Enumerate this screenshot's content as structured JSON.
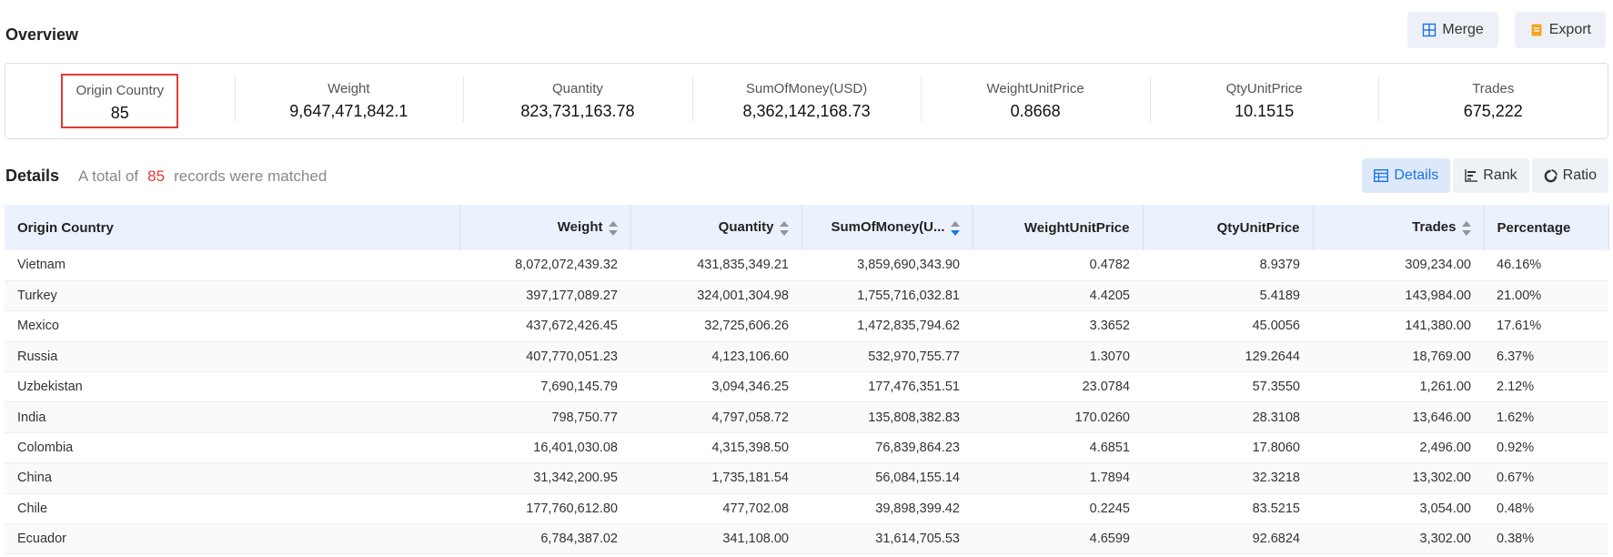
{
  "overview": {
    "title": "Overview",
    "actions": {
      "merge_label": "Merge",
      "export_label": "Export"
    },
    "stats": [
      {
        "label": "Origin Country",
        "value": "85"
      },
      {
        "label": "Weight",
        "value": "9,647,471,842.1"
      },
      {
        "label": "Quantity",
        "value": "823,731,163.78"
      },
      {
        "label": "SumOfMoney(USD)",
        "value": "8,362,142,168.73"
      },
      {
        "label": "WeightUnitPrice",
        "value": "0.8668"
      },
      {
        "label": "QtyUnitPrice",
        "value": "10.1515"
      },
      {
        "label": "Trades",
        "value": "675,222"
      }
    ]
  },
  "details": {
    "title": "Details",
    "summary_prefix": "A total of",
    "summary_count": "85",
    "summary_suffix": "records were matched",
    "views": {
      "details_label": "Details",
      "rank_label": "Rank",
      "ratio_label": "Ratio"
    },
    "columns": [
      "Origin Country",
      "Weight",
      "Quantity",
      "SumOfMoney(U...",
      "WeightUnitPrice",
      "QtyUnitPrice",
      "Trades",
      "Percentage"
    ],
    "rows": [
      [
        "Vietnam",
        "8,072,072,439.32",
        "431,835,349.21",
        "3,859,690,343.90",
        "0.4782",
        "8.9379",
        "309,234.00",
        "46.16%"
      ],
      [
        "Turkey",
        "397,177,089.27",
        "324,001,304.98",
        "1,755,716,032.81",
        "4.4205",
        "5.4189",
        "143,984.00",
        "21.00%"
      ],
      [
        "Mexico",
        "437,672,426.45",
        "32,725,606.26",
        "1,472,835,794.62",
        "3.3652",
        "45.0056",
        "141,380.00",
        "17.61%"
      ],
      [
        "Russia",
        "407,770,051.23",
        "4,123,106.60",
        "532,970,755.77",
        "1.3070",
        "129.2644",
        "18,769.00",
        "6.37%"
      ],
      [
        "Uzbekistan",
        "7,690,145.79",
        "3,094,346.25",
        "177,476,351.51",
        "23.0784",
        "57.3550",
        "1,261.00",
        "2.12%"
      ],
      [
        "India",
        "798,750.77",
        "4,797,058.72",
        "135,808,382.83",
        "170.0260",
        "28.3108",
        "13,646.00",
        "1.62%"
      ],
      [
        "Colombia",
        "16,401,030.08",
        "4,315,398.50",
        "76,839,864.23",
        "4.6851",
        "17.8060",
        "2,496.00",
        "0.92%"
      ],
      [
        "China",
        "31,342,200.95",
        "1,735,181.54",
        "56,084,155.14",
        "1.7894",
        "32.3218",
        "13,302.00",
        "0.67%"
      ],
      [
        "Chile",
        "177,760,612.80",
        "477,702.08",
        "39,898,399.42",
        "0.2245",
        "83.5215",
        "3,054.00",
        "0.48%"
      ],
      [
        "Ecuador",
        "6,784,387.02",
        "341,108.00",
        "31,614,705.53",
        "4.6599",
        "92.6824",
        "3,302.00",
        "0.38%"
      ]
    ]
  },
  "colors": {
    "accent": "#1a73e8",
    "highlight_red": "#e53935",
    "header_bg": "#ecf2fd"
  }
}
